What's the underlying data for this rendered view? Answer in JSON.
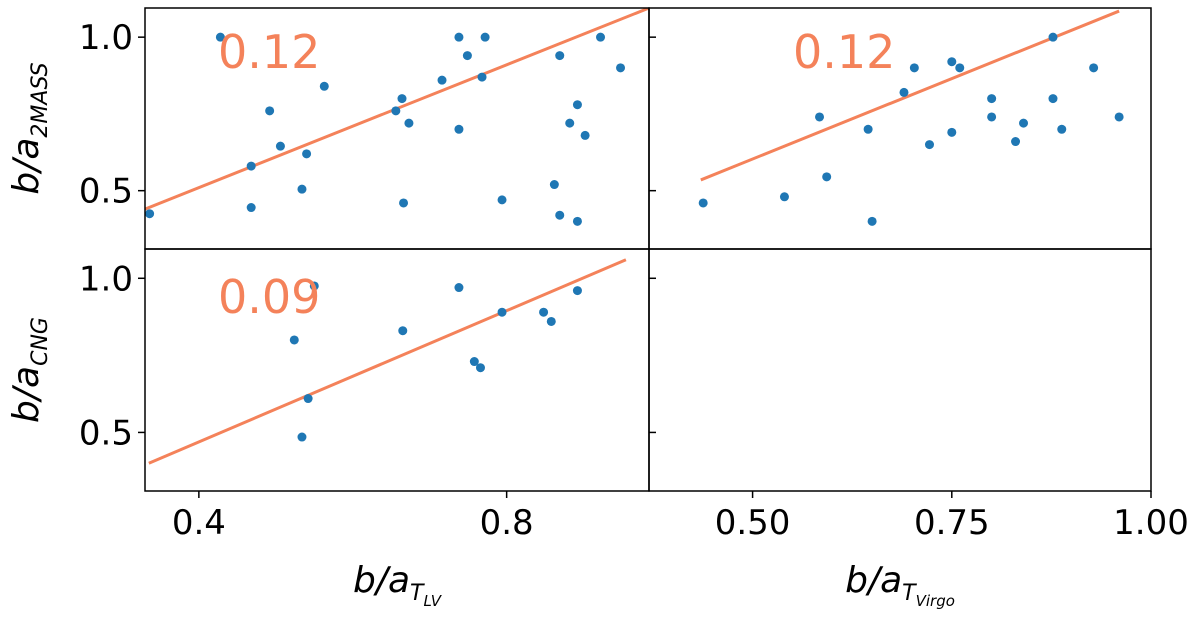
{
  "colors": {
    "point": "#1f77b4",
    "line": "#f4825a"
  },
  "chart_data": [
    {
      "type": "scatter",
      "panel": "top-left",
      "xlim": [
        0.33,
        0.985
      ],
      "ylim": [
        0.31,
        1.095
      ],
      "yticks": [
        "0.5",
        "1.0"
      ],
      "ytick_values": [
        0.5,
        1.0
      ],
      "ylabel": {
        "main": "b/a",
        "sub": "2MASS"
      },
      "annotation": "0.12",
      "fit_line": {
        "x": [
          0.33,
          0.985
        ],
        "y": [
          0.44,
          1.095
        ]
      },
      "points": [
        [
          0.336,
          0.425
        ],
        [
          0.428,
          1.0
        ],
        [
          0.468,
          0.58
        ],
        [
          0.468,
          0.445
        ],
        [
          0.492,
          0.76
        ],
        [
          0.506,
          0.645
        ],
        [
          0.534,
          0.505
        ],
        [
          0.54,
          0.62
        ],
        [
          0.563,
          0.84
        ],
        [
          0.656,
          0.76
        ],
        [
          0.664,
          0.8
        ],
        [
          0.666,
          0.46
        ],
        [
          0.673,
          0.72
        ],
        [
          0.716,
          0.86
        ],
        [
          0.738,
          1.0
        ],
        [
          0.738,
          0.7
        ],
        [
          0.749,
          0.94
        ],
        [
          0.768,
          0.87
        ],
        [
          0.772,
          1.0
        ],
        [
          0.794,
          0.47
        ],
        [
          0.862,
          0.52
        ],
        [
          0.869,
          0.94
        ],
        [
          0.869,
          0.42
        ],
        [
          0.882,
          0.72
        ],
        [
          0.892,
          0.78
        ],
        [
          0.892,
          0.4
        ],
        [
          0.902,
          0.68
        ],
        [
          0.922,
          1.0
        ],
        [
          0.948,
          0.9
        ]
      ]
    },
    {
      "type": "scatter",
      "panel": "top-right",
      "xlim": [
        0.37,
        1.0
      ],
      "ylim": [
        0.31,
        1.095
      ],
      "annotation": "0.12",
      "fit_line": {
        "x": [
          0.435,
          0.96
        ],
        "y": [
          0.535,
          1.085
        ]
      },
      "points": [
        [
          0.438,
          0.46
        ],
        [
          0.54,
          0.48
        ],
        [
          0.584,
          0.74
        ],
        [
          0.593,
          0.545
        ],
        [
          0.645,
          0.7
        ],
        [
          0.65,
          0.4
        ],
        [
          0.69,
          0.82
        ],
        [
          0.703,
          0.9
        ],
        [
          0.722,
          0.65
        ],
        [
          0.75,
          0.92
        ],
        [
          0.75,
          0.69
        ],
        [
          0.76,
          0.9
        ],
        [
          0.8,
          0.8
        ],
        [
          0.8,
          0.74
        ],
        [
          0.83,
          0.66
        ],
        [
          0.84,
          0.72
        ],
        [
          0.877,
          1.0
        ],
        [
          0.877,
          0.8
        ],
        [
          0.888,
          0.7
        ],
        [
          0.928,
          0.9
        ],
        [
          0.96,
          0.74
        ]
      ]
    },
    {
      "type": "scatter",
      "panel": "bottom-left",
      "xlim": [
        0.33,
        0.985
      ],
      "ylim": [
        0.31,
        1.095
      ],
      "xticks": [
        "0.4",
        "0.8"
      ],
      "xtick_values": [
        0.4,
        0.8
      ],
      "yticks": [
        "0.5",
        "1.0"
      ],
      "ytick_values": [
        0.5,
        1.0
      ],
      "xlabel": {
        "main": "b/a",
        "sub": "T",
        "subsub": "LV"
      },
      "ylabel": {
        "main": "b/a",
        "sub": "CNG"
      },
      "annotation": "0.09",
      "fit_line": {
        "x": [
          0.335,
          0.955
        ],
        "y": [
          0.4,
          1.06
        ]
      },
      "points": [
        [
          0.524,
          0.8
        ],
        [
          0.534,
          0.485
        ],
        [
          0.542,
          0.61
        ],
        [
          0.55,
          0.975
        ],
        [
          0.665,
          0.83
        ],
        [
          0.738,
          0.97
        ],
        [
          0.758,
          0.73
        ],
        [
          0.766,
          0.71
        ],
        [
          0.794,
          0.89
        ],
        [
          0.848,
          0.89
        ],
        [
          0.858,
          0.86
        ],
        [
          0.892,
          0.96
        ]
      ]
    },
    {
      "type": "scatter",
      "panel": "bottom-right",
      "xlim": [
        0.37,
        1.0
      ],
      "ylim": [
        0.31,
        1.095
      ],
      "xticks": [
        "0.50",
        "0.75",
        "1.00"
      ],
      "xtick_values": [
        0.5,
        0.75,
        1.0
      ],
      "xlabel": {
        "main": "b/a",
        "sub": "T",
        "subsub": "Virgo"
      },
      "points": []
    }
  ]
}
